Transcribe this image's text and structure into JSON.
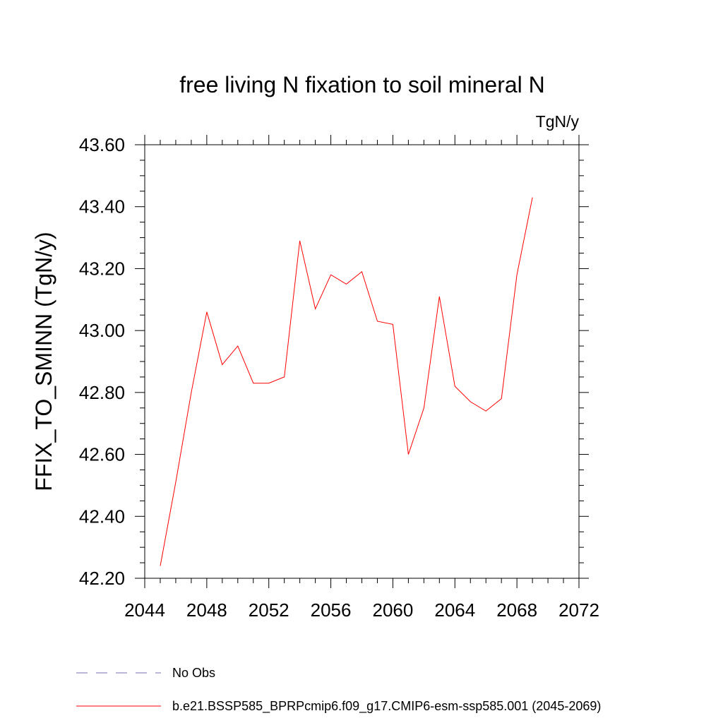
{
  "chart_data": {
    "type": "line",
    "title": "free living N fixation to soil mineral N",
    "units": "TgN/y",
    "ylabel": "FFIX_TO_SMINN  (TgN/y)",
    "xlabel": "",
    "xlim": [
      2044,
      2072
    ],
    "ylim": [
      42.2,
      43.6
    ],
    "xticks": [
      "2044",
      "2048",
      "2052",
      "2056",
      "2060",
      "2064",
      "2068",
      "2072"
    ],
    "yticks": [
      "42.20",
      "42.40",
      "42.60",
      "42.80",
      "43.00",
      "43.20",
      "43.40",
      "43.60"
    ],
    "grid": false,
    "legend_position": "bottom",
    "series": [
      {
        "name": "b.e21.BSSP585_BPRPcmip6.f09_g17.CMIP6-esm-ssp585.001 (2045-2069)",
        "color": "#ff0000",
        "style": "solid",
        "x": [
          2045,
          2046,
          2047,
          2048,
          2049,
          2050,
          2051,
          2052,
          2053,
          2054,
          2055,
          2056,
          2057,
          2058,
          2059,
          2060,
          2061,
          2062,
          2063,
          2064,
          2065,
          2066,
          2067,
          2068,
          2069
        ],
        "values": [
          42.24,
          42.51,
          42.8,
          43.06,
          42.89,
          42.95,
          42.83,
          42.83,
          42.85,
          43.29,
          43.07,
          43.18,
          43.15,
          43.19,
          43.03,
          43.02,
          42.6,
          42.75,
          43.11,
          42.82,
          42.77,
          42.74,
          42.78,
          43.18,
          43.43
        ]
      }
    ],
    "legend": [
      {
        "label": "No Obs",
        "color": "#7b6bb0",
        "style": "dashed"
      },
      {
        "label": "b.e21.BSSP585_BPRPcmip6.f09_g17.CMIP6-esm-ssp585.001 (2045-2069)",
        "color": "#ff0000",
        "style": "solid"
      }
    ]
  }
}
